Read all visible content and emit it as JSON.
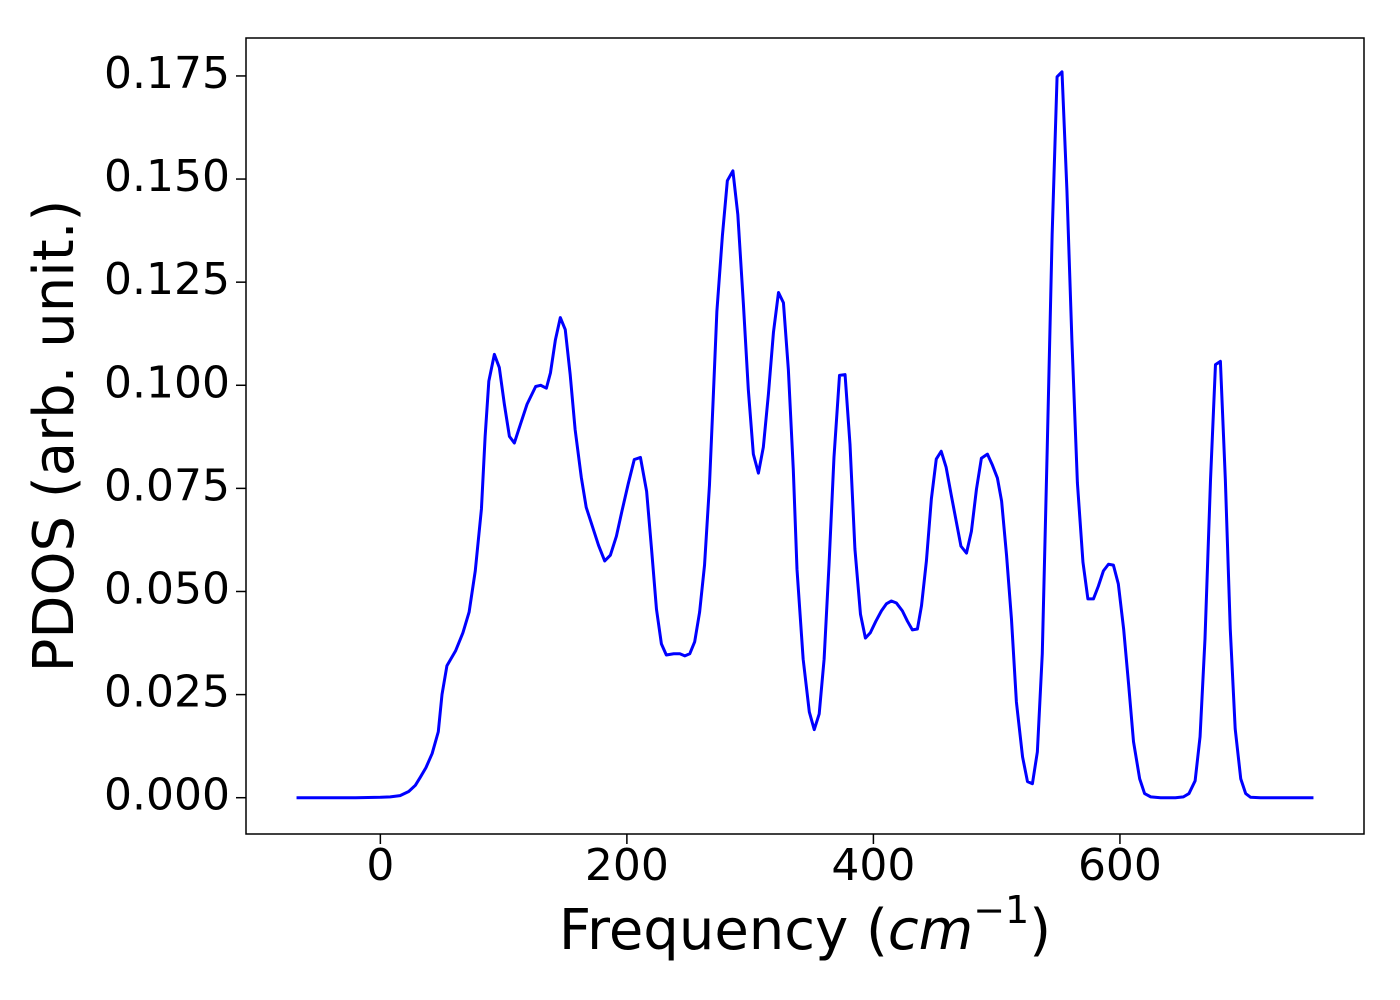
{
  "chart_data": {
    "type": "line",
    "xlabel": [
      "Frequency (",
      "cm",
      "−1",
      ")"
    ],
    "ylabel": "PDOS (arb. unit.)",
    "color": "#0000ff",
    "xlim": [
      -109,
      798
    ],
    "ylim": [
      -0.0088,
      0.1842
    ],
    "xticks": [
      0,
      200,
      400,
      600
    ],
    "yticks": [
      {
        "value": 0,
        "label": "0.000"
      },
      0.025,
      {
        "value": 0.05,
        "label": "0.050"
      },
      0.075,
      {
        "value": 0.1,
        "label": "0.100"
      },
      0.125,
      {
        "value": 0.15,
        "label": "0.150"
      },
      0.175
    ],
    "x": [
      -68,
      -40,
      -20,
      0,
      8,
      16,
      23,
      28.4,
      32.5,
      37,
      42,
      47,
      50,
      54,
      61,
      67,
      72,
      77,
      82,
      85,
      88,
      92.5,
      96.5,
      100.6,
      104.7,
      108.7,
      113.6,
      119,
      126,
      130,
      134.7,
      138,
      142,
      146,
      150,
      154,
      158,
      163,
      167,
      172,
      177,
      182,
      186.6,
      191.5,
      196,
      201,
      206,
      211,
      216,
      220,
      224,
      228,
      232,
      238,
      243,
      247,
      251,
      255,
      259,
      263,
      267,
      270,
      273,
      277.5,
      281.5,
      286,
      290,
      294.5,
      298.5,
      302.6,
      306.7,
      310.7,
      314.8,
      318.9,
      323,
      327,
      331,
      335,
      338,
      343,
      348,
      352,
      356,
      360,
      364,
      368,
      372.5,
      377,
      381,
      385,
      389.5,
      393.5,
      397.5,
      402,
      406.5,
      410.5,
      414.6,
      418.7,
      423.5,
      427.6,
      431.6,
      435.7,
      439,
      443,
      447,
      451,
      455,
      459,
      463,
      467,
      471,
      475.5,
      479.5,
      483.6,
      487.6,
      492.5,
      496.6,
      500.6,
      504,
      508,
      512,
      516,
      521,
      525,
      529,
      533,
      537,
      541,
      545,
      549,
      553,
      557,
      561,
      565.5,
      570,
      574,
      578.5,
      582.5,
      586.6,
      590.7,
      594.7,
      598.7,
      603,
      607,
      611,
      616,
      620,
      625,
      633,
      645,
      651.5,
      656,
      661,
      665,
      669,
      673.5,
      677.5,
      681.5,
      685.5,
      689.5,
      693.5,
      698,
      702,
      706,
      714,
      757
    ],
    "values": [
      0,
      0,
      0,
      0.0001,
      0.0002,
      0.0005,
      0.0015,
      0.003,
      0.005,
      0.0073,
      0.0107,
      0.016,
      0.025,
      0.032,
      0.0356,
      0.04,
      0.045,
      0.055,
      0.07,
      0.0876,
      0.101,
      0.1075,
      0.1043,
      0.0954,
      0.0876,
      0.086,
      0.0905,
      0.0954,
      0.0997,
      0.1,
      0.0993,
      0.103,
      0.111,
      0.1164,
      0.1135,
      0.1026,
      0.0893,
      0.0777,
      0.0704,
      0.0658,
      0.0612,
      0.0574,
      0.0588,
      0.0634,
      0.0695,
      0.076,
      0.082,
      0.0825,
      0.0743,
      0.0603,
      0.0457,
      0.0373,
      0.0346,
      0.0349,
      0.0349,
      0.0344,
      0.0349,
      0.0378,
      0.045,
      0.0564,
      0.0758,
      0.0966,
      0.1179,
      0.1363,
      0.1496,
      0.152,
      0.1414,
      0.1198,
      0.099,
      0.0833,
      0.0787,
      0.085,
      0.0978,
      0.1128,
      0.1225,
      0.12,
      0.1038,
      0.0796,
      0.0554,
      0.0336,
      0.0208,
      0.0165,
      0.0203,
      0.0336,
      0.0566,
      0.0825,
      0.1024,
      0.1026,
      0.0857,
      0.0603,
      0.0445,
      0.0387,
      0.04,
      0.0428,
      0.0453,
      0.047,
      0.0477,
      0.0472,
      0.0453,
      0.0428,
      0.0407,
      0.0409,
      0.0465,
      0.0574,
      0.0724,
      0.0821,
      0.084,
      0.0801,
      0.0736,
      0.0673,
      0.061,
      0.0593,
      0.0646,
      0.0748,
      0.0823,
      0.0833,
      0.0806,
      0.0775,
      0.0719,
      0.0588,
      0.0433,
      0.0232,
      0.0099,
      0.0039,
      0.0034,
      0.0111,
      0.0349,
      0.0845,
      0.1365,
      0.1748,
      0.176,
      0.1472,
      0.1111,
      0.0763,
      0.0571,
      0.0482,
      0.0482,
      0.0513,
      0.055,
      0.0566,
      0.0564,
      0.0518,
      0.0409,
      0.0276,
      0.0136,
      0.0046,
      0.001,
      0.0002,
      0,
      0,
      0.0002,
      0.001,
      0.0041,
      0.0148,
      0.0385,
      0.0772,
      0.105,
      0.1058,
      0.0772,
      0.0409,
      0.0167,
      0.0046,
      0.001,
      0.0001,
      0,
      0
    ]
  }
}
